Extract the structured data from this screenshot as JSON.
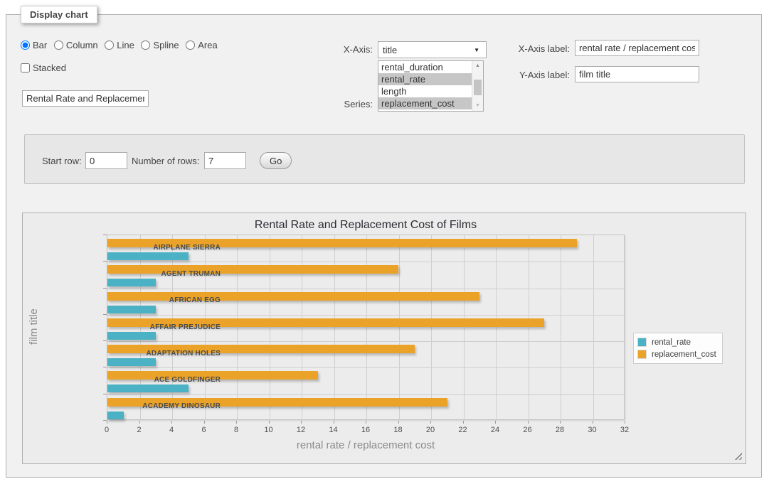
{
  "fieldset": {
    "legend_label": "Display chart"
  },
  "chart_type": {
    "options": [
      {
        "label": "Bar",
        "selected": true
      },
      {
        "label": "Column",
        "selected": false
      },
      {
        "label": "Line",
        "selected": false
      },
      {
        "label": "Spline",
        "selected": false
      },
      {
        "label": "Area",
        "selected": false
      }
    ],
    "stacked_label": "Stacked",
    "stacked_checked": false
  },
  "title_input": {
    "value": "Rental Rate and Replacement Cost of Films"
  },
  "x_axis": {
    "label": "X-Axis:",
    "selected_value": "title"
  },
  "series_select": {
    "label": "Series:",
    "options": [
      {
        "label": "rental_duration",
        "selected": false
      },
      {
        "label": "rental_rate",
        "selected": true
      },
      {
        "label": "length",
        "selected": false
      },
      {
        "label": "replacement_cost",
        "selected": true
      }
    ]
  },
  "axis_labels": {
    "x_label": "X-Axis label:",
    "x_value": "rental rate / replacement cost",
    "y_label": "Y-Axis label:",
    "y_value": "film title"
  },
  "rows_form": {
    "start_label": "Start row:",
    "start_value": "0",
    "num_label": "Number of rows:",
    "num_value": "7",
    "go_label": "Go"
  },
  "chart_data": {
    "type": "bar",
    "orientation": "horizontal",
    "title": "Rental Rate and Replacement Cost of Films",
    "xlabel": "rental rate / replacement cost",
    "ylabel": "film title",
    "categories": [
      "AIRPLANE SIERRA",
      "AGENT TRUMAN",
      "AFRICAN EGG",
      "AFFAIR PREJUDICE",
      "ADAPTATION HOLES",
      "ACE GOLDFINGER",
      "ACADEMY DINOSAUR"
    ],
    "series": [
      {
        "name": "rental_rate",
        "color": "#4bb2c5",
        "values": [
          4.99,
          2.99,
          2.99,
          2.99,
          2.99,
          4.99,
          0.99
        ]
      },
      {
        "name": "replacement_cost",
        "color": "#eaa228",
        "values": [
          28.99,
          17.99,
          22.99,
          26.99,
          18.99,
          12.99,
          20.99
        ]
      }
    ],
    "xlim": [
      0,
      32
    ],
    "xtick_step": 2,
    "grid": true,
    "legend_position": "right"
  }
}
